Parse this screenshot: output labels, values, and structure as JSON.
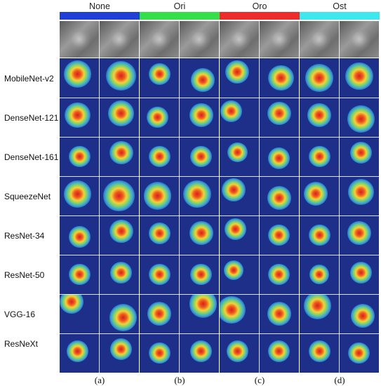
{
  "figure": {
    "columns": [
      {
        "key": "none",
        "label": "None",
        "color": "#1f3fd6",
        "panel_label": "(a)"
      },
      {
        "key": "ori",
        "label": "Ori",
        "color": "#33e04a",
        "panel_label": "(b)"
      },
      {
        "key": "oro",
        "label": "Oro",
        "color": "#ee2b2b",
        "panel_label": "(c)"
      },
      {
        "key": "ost",
        "label": "Ost",
        "color": "#3ee6ee",
        "panel_label": "(d)"
      }
    ],
    "rows": [
      "MobileNet-v2",
      "DenseNet-121",
      "DenseNet-161",
      "SqueezeNet",
      "ResNet-34",
      "ResNet-50",
      "VGG-16",
      "ResNeXt"
    ]
  }
}
